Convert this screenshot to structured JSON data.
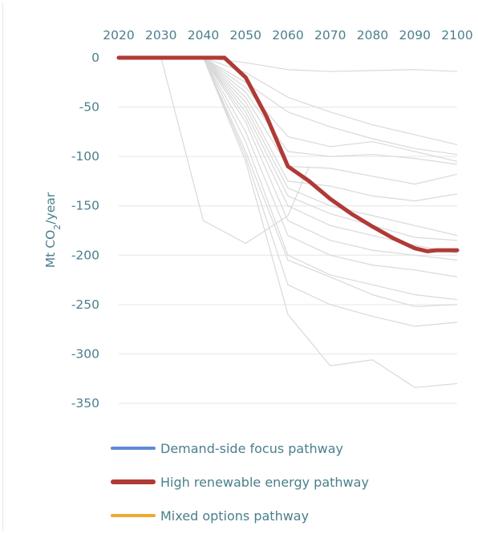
{
  "chart_data": {
    "type": "line",
    "title": "",
    "xlabel": "",
    "ylabel": {
      "prefix": "Mt CO",
      "subscript": "2",
      "suffix": "/year"
    },
    "x_ticks": [
      "2020",
      "2030",
      "2040",
      "2050",
      "2060",
      "2070",
      "2080",
      "2090",
      "2100"
    ],
    "y_ticks": [
      "0",
      "-50",
      "-100",
      "-150",
      "-200",
      "-250",
      "-300",
      "-350"
    ],
    "xlim": [
      2020,
      2100
    ],
    "ylim": [
      -350,
      0
    ],
    "x_axis_position": "top",
    "grid": "horizontal",
    "colors": {
      "background_lines": "#d9d9d9",
      "gridlines": "#e6e6e6",
      "axis_text": "#4a7f8c",
      "demand_side": "#5b8dd6",
      "high_renewable": "#b03a36",
      "mixed_options": "#f0a830"
    },
    "legend_position": "bottom",
    "legend": [
      {
        "label": "Demand-side focus pathway",
        "color": "#5b8dd6"
      },
      {
        "label": "High renewable energy pathway",
        "color": "#b03a36"
      },
      {
        "label": "Mixed options pathway",
        "color": "#f0a830"
      }
    ],
    "highlighted_series": {
      "label": "High renewable energy pathway",
      "color": "#b03a36",
      "x": [
        2020,
        2030,
        2040,
        2045,
        2050,
        2055,
        2060,
        2065,
        2070,
        2075,
        2080,
        2085,
        2090,
        2093,
        2095,
        2100
      ],
      "y": [
        0,
        0,
        0,
        0,
        -20,
        -60,
        -110,
        -125,
        -143,
        -158,
        -171,
        -183,
        -193,
        -196,
        -195,
        -195
      ]
    },
    "background_series": [
      {
        "x": [
          2030,
          2040,
          2050,
          2060,
          2065
        ],
        "y": [
          0,
          -165,
          -188,
          -160,
          -110
        ]
      },
      {
        "x": [
          2040,
          2050,
          2060,
          2070,
          2080,
          2090,
          2100
        ],
        "y": [
          0,
          -5,
          -12,
          -14,
          -13,
          -12,
          -14
        ]
      },
      {
        "x": [
          2040,
          2050,
          2060,
          2070,
          2080,
          2090,
          2100
        ],
        "y": [
          0,
          -15,
          -40,
          -55,
          -68,
          -78,
          -88
        ]
      },
      {
        "x": [
          2040,
          2050,
          2060,
          2070,
          2080,
          2090,
          2100
        ],
        "y": [
          0,
          -25,
          -55,
          -70,
          -82,
          -92,
          -98
        ]
      },
      {
        "x": [
          2040,
          2050,
          2060,
          2070,
          2080,
          2090,
          2100
        ],
        "y": [
          0,
          -30,
          -80,
          -90,
          -85,
          -95,
          -105
        ]
      },
      {
        "x": [
          2040,
          2050,
          2060,
          2070,
          2080,
          2090,
          2100
        ],
        "y": [
          0,
          -35,
          -95,
          -100,
          -98,
          -102,
          -108
        ]
      },
      {
        "x": [
          2040,
          2050,
          2060,
          2070,
          2080,
          2090,
          2100
        ],
        "y": [
          0,
          -40,
          -110,
          -112,
          -120,
          -128,
          -118
        ]
      },
      {
        "x": [
          2040,
          2050,
          2060,
          2070,
          2080,
          2090,
          2100
        ],
        "y": [
          0,
          -45,
          -125,
          -130,
          -140,
          -145,
          -138
        ]
      },
      {
        "x": [
          2040,
          2050,
          2060,
          2070,
          2080,
          2090,
          2100
        ],
        "y": [
          0,
          -50,
          -132,
          -150,
          -160,
          -170,
          -180
        ]
      },
      {
        "x": [
          2040,
          2050,
          2060,
          2070,
          2080,
          2090,
          2100
        ],
        "y": [
          0,
          -55,
          -140,
          -158,
          -170,
          -182,
          -185
        ]
      },
      {
        "x": [
          2040,
          2050,
          2060,
          2070,
          2080,
          2090,
          2100
        ],
        "y": [
          0,
          -60,
          -150,
          -170,
          -180,
          -190,
          -198
        ]
      },
      {
        "x": [
          2040,
          2050,
          2060,
          2070,
          2080,
          2090,
          2100
        ],
        "y": [
          0,
          -65,
          -165,
          -185,
          -195,
          -200,
          -205
        ]
      },
      {
        "x": [
          2040,
          2050,
          2060,
          2070,
          2080,
          2090,
          2100
        ],
        "y": [
          0,
          -75,
          -180,
          -200,
          -210,
          -215,
          -222
        ]
      },
      {
        "x": [
          2040,
          2050,
          2060,
          2070,
          2080,
          2090,
          2100
        ],
        "y": [
          0,
          -85,
          -200,
          -220,
          -230,
          -240,
          -245
        ]
      },
      {
        "x": [
          2040,
          2050,
          2060,
          2070,
          2080,
          2090,
          2100
        ],
        "y": [
          0,
          -95,
          -205,
          -222,
          -240,
          -252,
          -250
        ]
      },
      {
        "x": [
          2040,
          2050,
          2060,
          2070,
          2080,
          2090,
          2100
        ],
        "y": [
          0,
          -105,
          -260,
          -312,
          -306,
          -334,
          -330
        ]
      },
      {
        "x": [
          2040,
          2050,
          2060,
          2070,
          2080,
          2090,
          2100
        ],
        "y": [
          0,
          -100,
          -230,
          -250,
          -262,
          -272,
          -268
        ]
      }
    ]
  }
}
